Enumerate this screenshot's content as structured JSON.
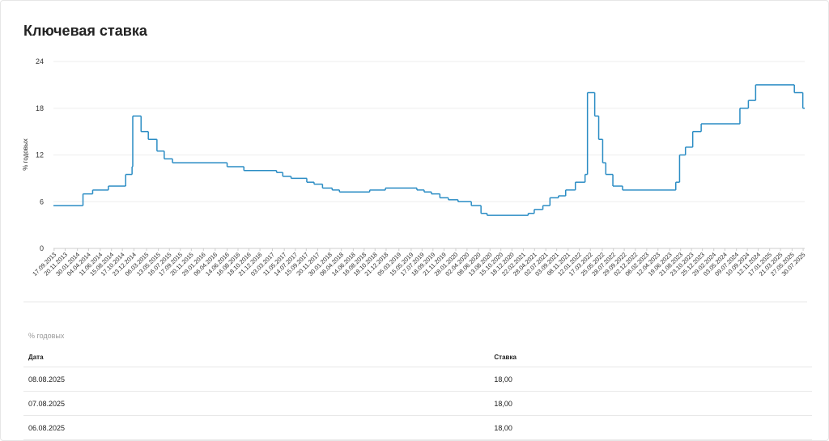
{
  "title": "Ключевая ставка",
  "chart_data": {
    "type": "step",
    "y_label": "% годовых",
    "color": "#2a8cc4",
    "grid": true,
    "ylim": [
      0,
      24
    ],
    "yticks": [
      0,
      6,
      12,
      18,
      24
    ],
    "xlim": [
      "13.09.2013",
      "08.08.2025"
    ],
    "xticks": [
      "17.09.2013",
      "20.11.2013",
      "30.01.2014",
      "04.04.2014",
      "11.06.2014",
      "15.08.2014",
      "17.10.2014",
      "23.12.2014",
      "06.03.2015",
      "13.05.2015",
      "16.07.2015",
      "17.09.2015",
      "20.11.2015",
      "29.01.2016",
      "06.04.2016",
      "14.06.2016",
      "16.08.2016",
      "18.10.2016",
      "21.12.2016",
      "03.03.2017",
      "11.05.2017",
      "14.07.2017",
      "15.09.2017",
      "20.11.2017",
      "30.01.2018",
      "06.04.2018",
      "14.06.2018",
      "16.08.2018",
      "18.10.2018",
      "21.12.2018",
      "05.03.2019",
      "15.05.2019",
      "17.07.2019",
      "18.09.2019",
      "21.11.2019",
      "28.01.2020",
      "02.04.2020",
      "08.06.2020",
      "13.08.2020",
      "15.10.2020",
      "18.12.2020",
      "22.02.2021",
      "28.04.2021",
      "02.07.2021",
      "03.09.2021",
      "08.11.2021",
      "12.01.2022",
      "17.03.2022",
      "25.05.2022",
      "28.07.2022",
      "29.09.2022",
      "02.12.2022",
      "06.02.2023",
      "12.04.2023",
      "19.06.2023",
      "21.08.2023",
      "23.10.2023",
      "25.12.2023",
      "29.02.2024",
      "03.05.2024",
      "09.07.2024",
      "10.09.2024",
      "12.11.2024",
      "17.01.2025",
      "21.03.2025",
      "27.05.2025",
      "30.07.2025"
    ],
    "x": [
      "13.09.2013",
      "03.03.2014",
      "28.04.2014",
      "28.07.2014",
      "05.11.2014",
      "12.12.2014",
      "16.12.2014",
      "02.02.2015",
      "16.03.2015",
      "05.05.2015",
      "16.06.2015",
      "03.08.2015",
      "14.06.2016",
      "19.09.2016",
      "27.03.2017",
      "02.05.2017",
      "19.06.2017",
      "18.09.2017",
      "30.10.2017",
      "18.12.2017",
      "12.02.2018",
      "26.03.2018",
      "17.09.2018",
      "17.12.2018",
      "17.06.2019",
      "29.07.2019",
      "09.09.2019",
      "28.10.2019",
      "16.12.2019",
      "10.02.2020",
      "27.04.2020",
      "22.06.2020",
      "27.07.2020",
      "22.03.2021",
      "26.04.2021",
      "15.06.2021",
      "26.07.2021",
      "13.09.2021",
      "25.10.2021",
      "20.12.2021",
      "14.02.2022",
      "28.02.2022",
      "11.04.2022",
      "04.05.2022",
      "27.05.2022",
      "14.06.2022",
      "25.07.2022",
      "19.09.2022",
      "24.07.2023",
      "15.08.2023",
      "18.09.2023",
      "30.10.2023",
      "18.12.2023",
      "29.07.2024",
      "16.09.2024",
      "28.10.2024",
      "09.06.2025",
      "28.07.2025"
    ],
    "values": [
      5.5,
      7,
      7.5,
      8,
      9.5,
      10.5,
      17,
      15,
      14,
      12.5,
      11.5,
      11,
      10.5,
      10,
      9.75,
      9.25,
      9,
      8.5,
      8.25,
      7.75,
      7.5,
      7.25,
      7.5,
      7.75,
      7.5,
      7.25,
      7,
      6.5,
      6.25,
      6,
      5.5,
      4.5,
      4.25,
      4.5,
      5,
      5.5,
      6.5,
      6.75,
      7.5,
      8.5,
      9.5,
      20,
      17,
      14,
      11,
      9.5,
      8,
      7.5,
      8.5,
      12,
      13,
      15,
      16,
      18,
      19,
      21,
      20,
      18
    ]
  },
  "table": {
    "unit": "% годовых",
    "header": [
      "Дата",
      "Ставка"
    ],
    "rows": [
      [
        "08.08.2025",
        "18,00"
      ],
      [
        "07.08.2025",
        "18,00"
      ],
      [
        "06.08.2025",
        "18,00"
      ]
    ]
  }
}
